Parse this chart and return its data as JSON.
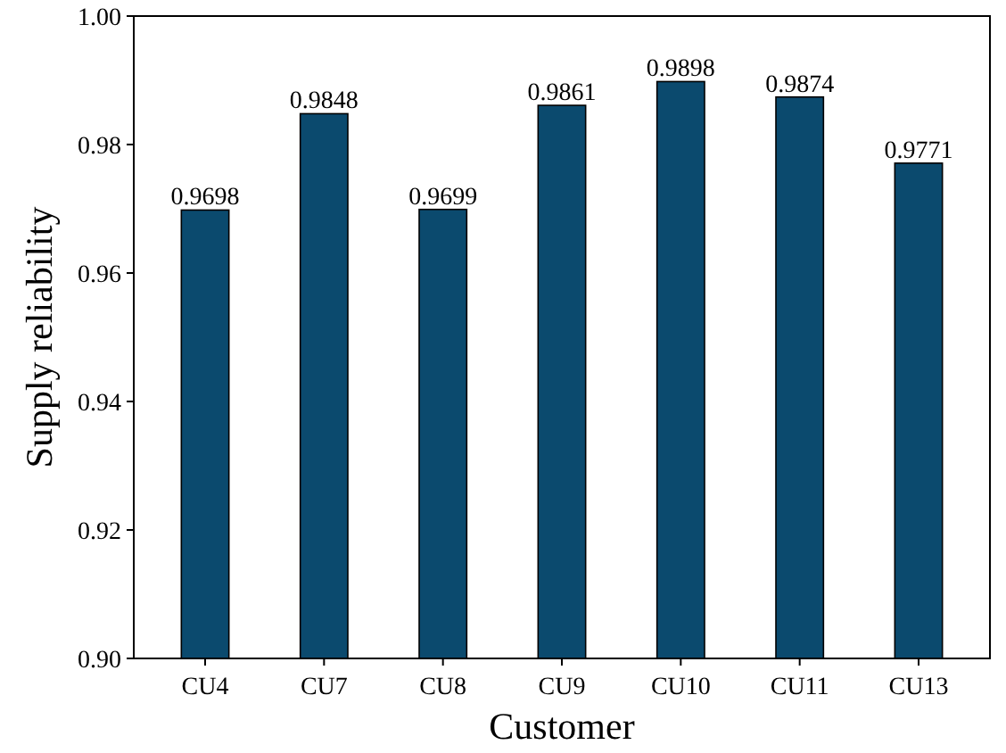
{
  "chart_data": {
    "type": "bar",
    "xlabel": "Customer",
    "ylabel": "Supply reliability",
    "categories": [
      "CU4",
      "CU7",
      "CU8",
      "CU9",
      "CU10",
      "CU11",
      "CU13"
    ],
    "values": [
      0.9698,
      0.9848,
      0.9699,
      0.9861,
      0.9898,
      0.9874,
      0.9771
    ],
    "color": "#0b4a6e",
    "ylim": [
      0.9,
      1.0
    ],
    "yticks": [
      {
        "value": 0.9,
        "label": "0.90"
      },
      {
        "value": 0.92,
        "label": "0.92"
      },
      {
        "value": 0.94,
        "label": "0.94"
      },
      {
        "value": 0.96,
        "label": "0.96"
      },
      {
        "value": 0.98,
        "label": "0.98"
      },
      {
        "value": 1.0,
        "label": "1.00"
      }
    ],
    "data_labels": true,
    "grid": false
  }
}
